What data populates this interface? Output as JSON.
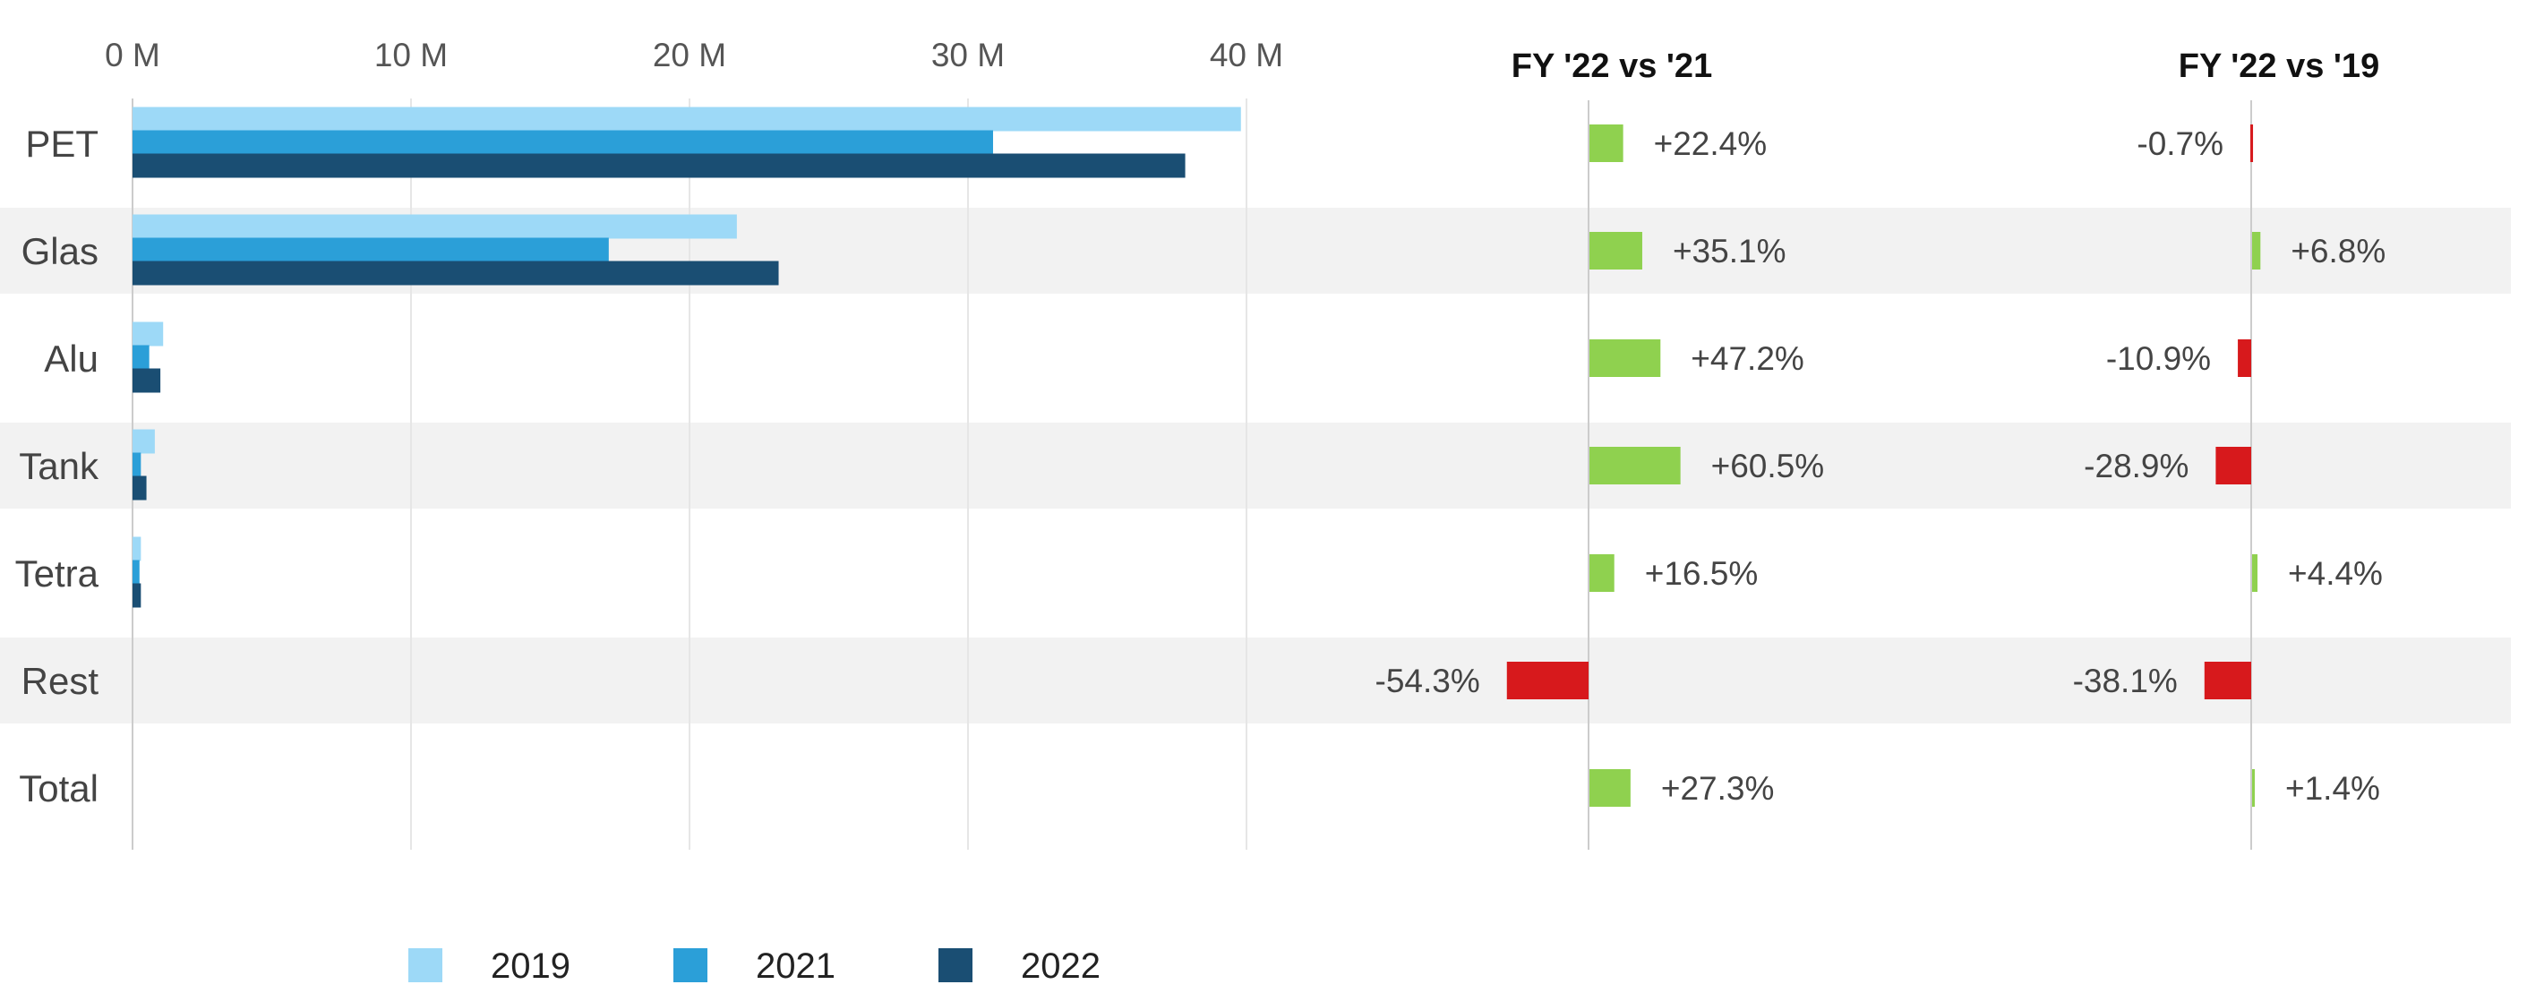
{
  "chart_data": {
    "type": "bar",
    "orientation": "horizontal",
    "categories": [
      "PET",
      "Glas",
      "Alu",
      "Tank",
      "Tetra",
      "Rest",
      "Total"
    ],
    "series": [
      {
        "name": "2019",
        "color": "#9dd9f7",
        "values": [
          39.8,
          21.7,
          1.1,
          0.8,
          0.3,
          0.0,
          0.0
        ]
      },
      {
        "name": "2021",
        "color": "#2b9fd8",
        "values": [
          30.9,
          17.1,
          0.6,
          0.3,
          0.25,
          0.0,
          0.0
        ]
      },
      {
        "name": "2022",
        "color": "#1a4e73",
        "values": [
          37.8,
          23.2,
          1.0,
          0.5,
          0.3,
          0.0,
          0.0
        ]
      }
    ],
    "xlim": [
      0,
      40
    ],
    "x_ticks": [
      {
        "value": 0,
        "label": "0 M"
      },
      {
        "value": 10,
        "label": "10 M"
      },
      {
        "value": 20,
        "label": "20 M"
      },
      {
        "value": 30,
        "label": "30 M"
      },
      {
        "value": 40,
        "label": "40 M"
      }
    ],
    "grid": true,
    "legend": {
      "position": "bottom-left"
    },
    "comparisons": [
      {
        "title": "FY '22 vs '21",
        "values": [
          22.4,
          35.1,
          47.2,
          60.5,
          16.5,
          -54.3,
          27.3
        ],
        "labels": [
          "+22.4%",
          "+35.1%",
          "+47.2%",
          "+60.5%",
          "+16.5%",
          "-54.3%",
          "+27.3%"
        ]
      },
      {
        "title": "FY '22 vs '19",
        "values": [
          -0.7,
          6.8,
          -10.9,
          -28.9,
          4.4,
          -38.1,
          1.4
        ],
        "labels": [
          "-0.7%",
          "+6.8%",
          "-10.9%",
          "-28.9%",
          "+4.4%",
          "-38.1%",
          "+1.4%"
        ]
      }
    ],
    "colors": {
      "positive": "#8fd14f",
      "negative": "#d7191c",
      "band": "#f2f2f2",
      "grid": "#e6e6e6",
      "zero_line": "#cccccc"
    }
  }
}
